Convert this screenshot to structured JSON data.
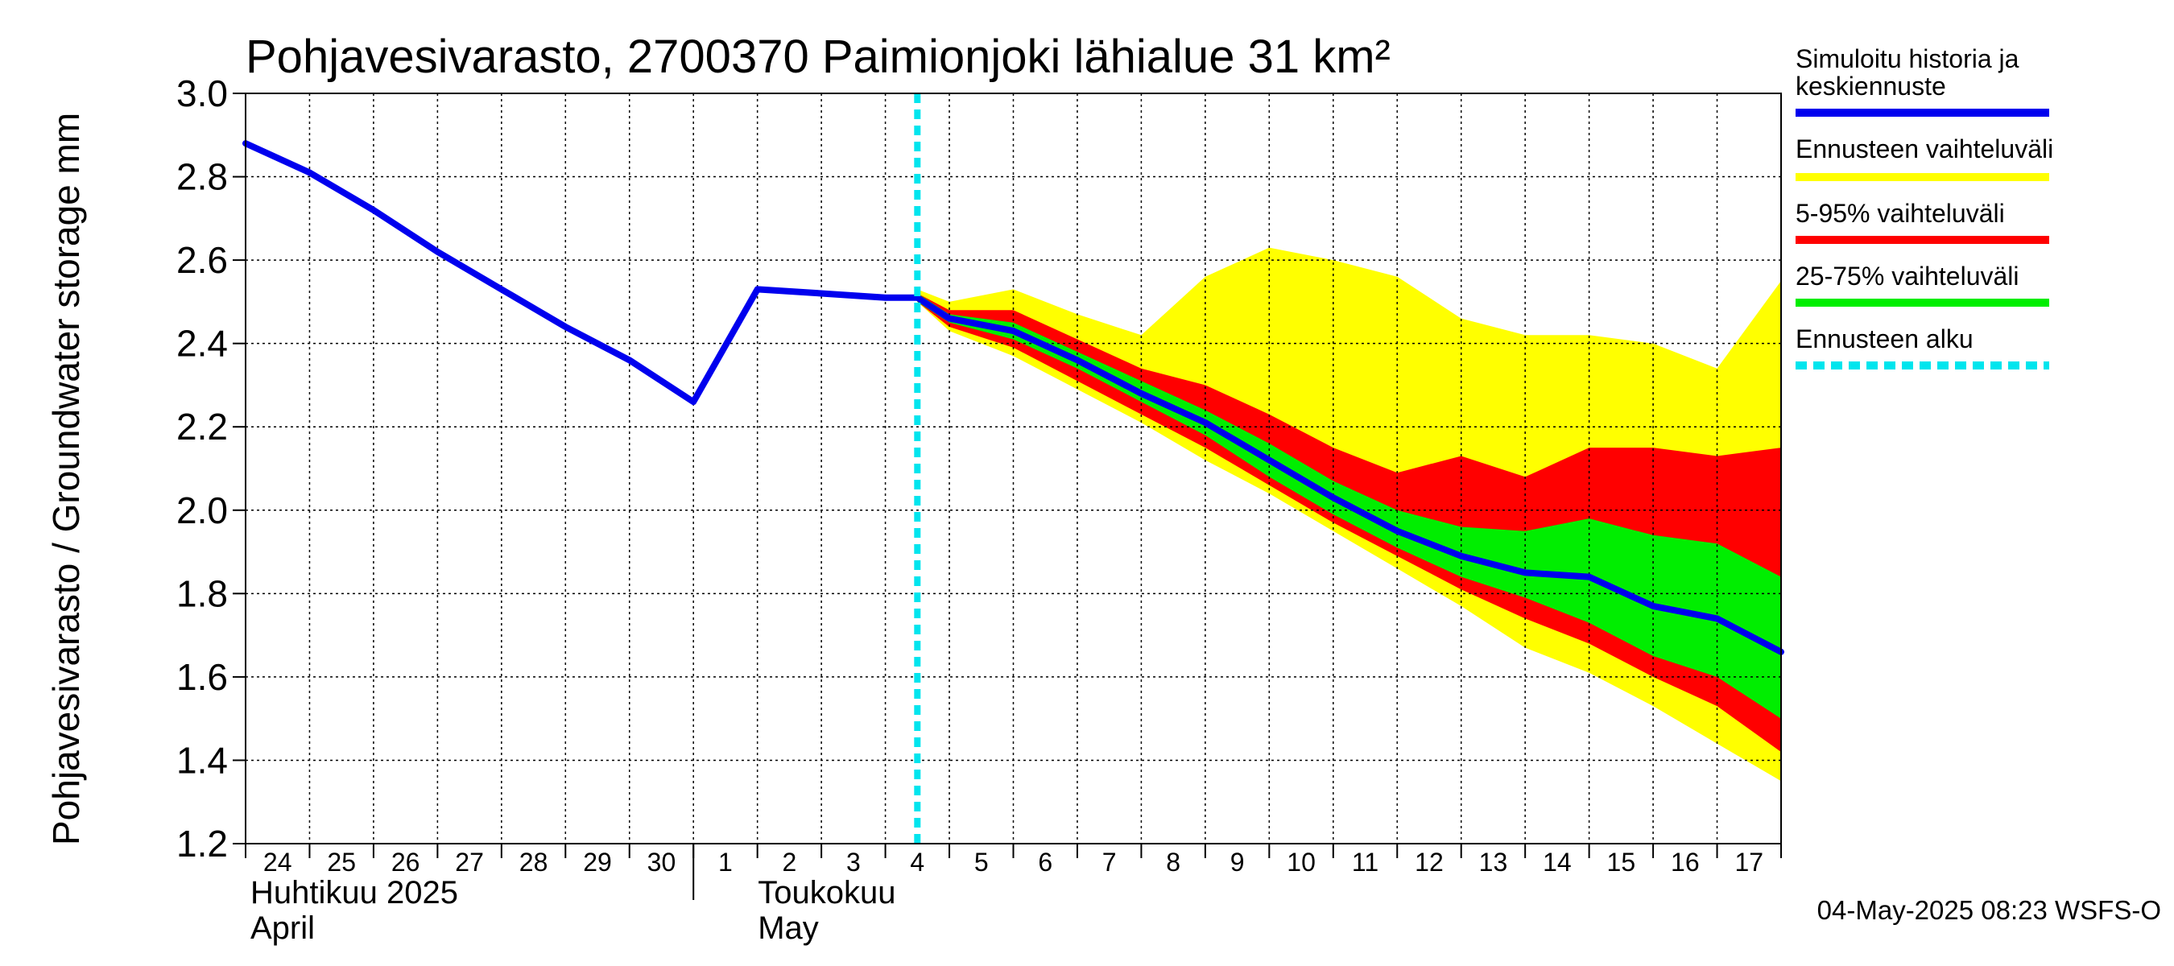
{
  "chart_data": {
    "type": "area",
    "title": "Pohjavesivarasto, 2700370 Paimionjoki lähialue 31 km²",
    "ylabel": "Pohjavesivarasto / Groundwater storage   mm",
    "ylim": [
      1.2,
      3.0
    ],
    "yticks": [
      "1.2",
      "1.4",
      "1.6",
      "1.8",
      "2.0",
      "2.2",
      "2.4",
      "2.6",
      "2.8",
      "3.0"
    ],
    "day_labels": [
      "24",
      "25",
      "26",
      "27",
      "28",
      "29",
      "30",
      "1",
      "2",
      "3",
      "4",
      "5",
      "6",
      "7",
      "8",
      "9",
      "10",
      "11",
      "12",
      "13",
      "14",
      "15",
      "16",
      "17"
    ],
    "month_labels": {
      "april_fi": "Huhtikuu  2025",
      "april_en": "April",
      "may_fi": "Toukokuu",
      "may_en": "May"
    },
    "x_start": "2025-04-24",
    "x_days": 24,
    "forecast_start_day": 10.5,
    "series": [
      {
        "name": "Simuloitu historia ja keskiennuste",
        "color": "#0000ee",
        "points": [
          [
            0,
            2.88
          ],
          [
            1,
            2.81
          ],
          [
            2,
            2.72
          ],
          [
            3,
            2.62
          ],
          [
            4,
            2.53
          ],
          [
            5,
            2.44
          ],
          [
            6,
            2.36
          ],
          [
            7,
            2.26
          ],
          [
            8,
            2.53
          ],
          [
            9,
            2.52
          ],
          [
            10,
            2.51
          ],
          [
            10.5,
            2.51
          ],
          [
            11,
            2.46
          ],
          [
            12,
            2.43
          ],
          [
            13,
            2.36
          ],
          [
            14,
            2.28
          ],
          [
            15,
            2.21
          ],
          [
            16,
            2.12
          ],
          [
            17,
            2.03
          ],
          [
            18,
            1.95
          ],
          [
            19,
            1.89
          ],
          [
            20,
            1.85
          ],
          [
            21,
            1.84
          ],
          [
            22,
            1.77
          ],
          [
            23,
            1.74
          ],
          [
            24,
            1.66
          ]
        ]
      }
    ],
    "bands": [
      {
        "name": "Ennusteen vaihteluväli",
        "color": "#ffff00",
        "x": [
          10.5,
          11,
          12,
          13,
          14,
          15,
          16,
          17,
          18,
          19,
          20,
          21,
          22,
          23,
          24
        ],
        "lower": [
          2.5,
          2.43,
          2.37,
          2.29,
          2.21,
          2.12,
          2.04,
          1.95,
          1.86,
          1.77,
          1.67,
          1.61,
          1.53,
          1.44,
          1.35
        ],
        "upper": [
          2.53,
          2.5,
          2.53,
          2.47,
          2.42,
          2.56,
          2.63,
          2.6,
          2.56,
          2.46,
          2.42,
          2.42,
          2.4,
          2.34,
          2.55
        ]
      },
      {
        "name": "5-95% vaihteluväli",
        "color": "#ff0000",
        "x": [
          10.5,
          11,
          12,
          13,
          14,
          15,
          16,
          17,
          18,
          19,
          20,
          21,
          22,
          23,
          24
        ],
        "lower": [
          2.5,
          2.44,
          2.39,
          2.31,
          2.23,
          2.15,
          2.06,
          1.97,
          1.89,
          1.81,
          1.74,
          1.68,
          1.6,
          1.53,
          1.42
        ],
        "upper": [
          2.52,
          2.48,
          2.48,
          2.41,
          2.34,
          2.3,
          2.23,
          2.15,
          2.09,
          2.13,
          2.08,
          2.15,
          2.15,
          2.13,
          2.15
        ]
      },
      {
        "name": "25-75% vaihteluväli",
        "color": "#00ee00",
        "x": [
          10.5,
          11,
          12,
          13,
          14,
          15,
          16,
          17,
          18,
          19,
          20,
          21,
          22,
          23,
          24
        ],
        "lower": [
          2.5,
          2.45,
          2.41,
          2.34,
          2.26,
          2.18,
          2.08,
          1.99,
          1.91,
          1.84,
          1.79,
          1.73,
          1.65,
          1.6,
          1.5
        ],
        "upper": [
          2.52,
          2.47,
          2.45,
          2.38,
          2.31,
          2.24,
          2.16,
          2.07,
          2.0,
          1.96,
          1.95,
          1.98,
          1.94,
          1.92,
          1.84
        ]
      }
    ],
    "legend": [
      {
        "label_line1": "Simuloitu historia ja",
        "label_line2": "keskiennuste",
        "color": "#0000ee",
        "style": "solid"
      },
      {
        "label_line1": "Ennusteen vaihteluväli",
        "label_line2": "",
        "color": "#ffff00",
        "style": "solid"
      },
      {
        "label_line1": "5-95% vaihteluväli",
        "label_line2": "",
        "color": "#ff0000",
        "style": "solid"
      },
      {
        "label_line1": "25-75% vaihteluväli",
        "label_line2": "",
        "color": "#00ee00",
        "style": "solid"
      },
      {
        "label_line1": "Ennusteen alku",
        "label_line2": "",
        "color": "#00e5ee",
        "style": "dashed"
      }
    ],
    "grid": true,
    "timestamp": "04-May-2025 08:23 WSFS-O"
  }
}
